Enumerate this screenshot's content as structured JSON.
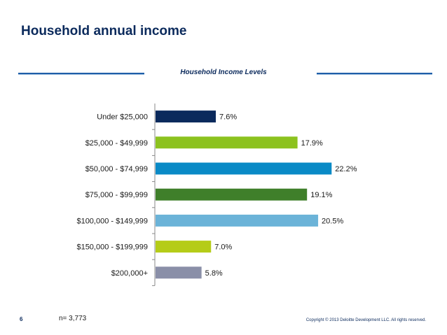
{
  "slide": {
    "title": "Household annual income",
    "page_number": "6",
    "sample_note": "n= 3,773",
    "copyright": "Copyright © 2013 Deloitte Development LLC. All rights reserved."
  },
  "chart_data": {
    "type": "bar",
    "orientation": "horizontal",
    "title": "Household Income Levels",
    "categories": [
      "Under $25,000",
      "$25,000 - $49,999",
      "$50,000 - $74,999",
      "$75,000 - $99,999",
      "$100,000 - $149,999",
      "$150,000 - $199,999",
      "$200,000+"
    ],
    "values": [
      7.6,
      17.9,
      22.2,
      19.1,
      20.5,
      7.0,
      5.8
    ],
    "value_labels": [
      "7.6%",
      "17.9%",
      "22.2%",
      "19.1%",
      "20.5%",
      "7.0%",
      "5.8%"
    ],
    "colors": [
      "#0b2a5c",
      "#8cc21e",
      "#0a8ac6",
      "#3f7f2a",
      "#6bb3d8",
      "#b5cc18",
      "#8a8fa8"
    ],
    "xlim": [
      0,
      25
    ],
    "grid": false,
    "legend": "none"
  }
}
